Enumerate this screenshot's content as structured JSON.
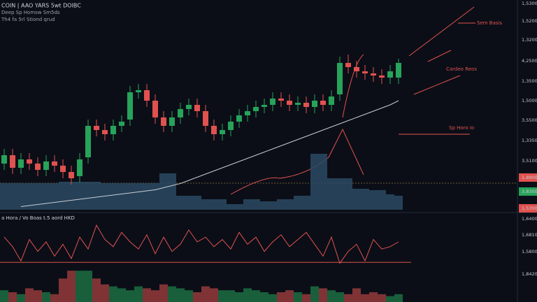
{
  "chart_data": {
    "type": "candlestick",
    "title": "COIN | AAO YARS 5wt DOIBC",
    "subtitle": "Deep Sp Homsw Sm5ds",
    "subtitle2": "Th4 fa 5rl Stiond qrud",
    "annotations": [
      "Sem Basis",
      "Cardeo Reos",
      "Sp Horo Io"
    ],
    "panel2_title": "a Hora / Vo Boas t.5 aord HKD",
    "axis_labels": [
      "1,5300",
      "1,5200",
      "1,3200",
      "4,2500",
      "1,3500",
      "1,5000",
      "3,5500",
      "1,3350",
      "3,5100",
      "1,8900",
      "3,8300",
      "1,5300",
      "1,6400",
      "1,6810",
      "1,5800",
      "1,8420"
    ],
    "up_color": "#27a35a",
    "down_color": "#e0524f",
    "ma_color": "#c9ccd4",
    "volume_color": "#2c4a63",
    "ylim": [
      0,
      100
    ],
    "open": [
      22,
      26,
      20,
      24,
      22,
      19,
      23,
      21,
      18,
      16,
      25,
      40,
      38,
      36,
      40,
      43,
      56,
      57,
      52,
      44,
      40,
      44,
      48,
      50,
      47,
      40,
      36,
      38,
      42,
      45,
      47,
      49,
      50,
      53,
      52,
      50,
      51,
      49,
      52,
      50,
      55,
      70,
      68,
      66,
      65,
      64,
      63,
      63
    ],
    "high": [
      29,
      29,
      27,
      27,
      25,
      26,
      26,
      24,
      21,
      27,
      43,
      43,
      41,
      43,
      45,
      59,
      60,
      60,
      55,
      47,
      47,
      51,
      53,
      53,
      50,
      43,
      41,
      45,
      48,
      50,
      52,
      53,
      56,
      56,
      55,
      54,
      54,
      55,
      55,
      57,
      73,
      74,
      71,
      69,
      68,
      67,
      69,
      72
    ],
    "low": [
      19,
      17,
      17,
      19,
      16,
      16,
      18,
      15,
      12,
      13,
      22,
      35,
      33,
      33,
      37,
      40,
      53,
      49,
      41,
      37,
      37,
      41,
      45,
      44,
      37,
      33,
      33,
      35,
      39,
      42,
      44,
      46,
      47,
      49,
      47,
      47,
      46,
      46,
      47,
      47,
      52,
      65,
      63,
      62,
      61,
      60,
      60,
      60
    ],
    "close": [
      26,
      20,
      24,
      22,
      19,
      23,
      21,
      18,
      15,
      24,
      40,
      38,
      36,
      40,
      42,
      56,
      57,
      52,
      44,
      40,
      44,
      48,
      50,
      47,
      40,
      36,
      38,
      42,
      45,
      47,
      49,
      50,
      53,
      52,
      50,
      51,
      49,
      52,
      50,
      54,
      70,
      68,
      66,
      65,
      64,
      63,
      66,
      70
    ],
    "ma": [
      null,
      null,
      1.5,
      2,
      2.5,
      3,
      3.5,
      4,
      4.5,
      5,
      5.5,
      6,
      6.5,
      7,
      7.5,
      8,
      8.5,
      9,
      9.5,
      10.5,
      11.5,
      12.5,
      14,
      15.5,
      17,
      18.5,
      20,
      21.5,
      23,
      24.5,
      26,
      27.5,
      29,
      30.5,
      32,
      33.5,
      35,
      36.5,
      38,
      39.5,
      41,
      42.5,
      44,
      45.5,
      47,
      48.5,
      50,
      52
    ],
    "volume": [
      38,
      38,
      38,
      38,
      38,
      38,
      38,
      40,
      40,
      40,
      40,
      40,
      38,
      38,
      38,
      38,
      38,
      38,
      38,
      52,
      52,
      20,
      20,
      20,
      15,
      15,
      15,
      8,
      8,
      15,
      15,
      12,
      12,
      15,
      15,
      20,
      20,
      80,
      80,
      45,
      45,
      45,
      30,
      30,
      28,
      28,
      22,
      20
    ],
    "vlim": [
      0,
      100
    ],
    "oscillator": [
      60,
      40,
      10,
      55,
      30,
      50,
      20,
      45,
      15,
      60,
      35,
      85,
      55,
      40,
      70,
      50,
      35,
      65,
      25,
      60,
      30,
      45,
      75,
      50,
      60,
      40,
      55,
      35,
      70,
      45,
      60,
      30,
      50,
      65,
      40,
      55,
      70,
      45,
      20,
      60,
      5,
      30,
      45,
      10,
      55,
      35,
      40,
      50
    ],
    "oscillator_baseline": 7,
    "olim": [
      0,
      100
    ],
    "histogram": [
      30,
      25,
      20,
      35,
      30,
      25,
      20,
      60,
      80,
      80,
      80,
      60,
      45,
      40,
      35,
      30,
      40,
      35,
      30,
      45,
      40,
      35,
      30,
      25,
      40,
      35,
      30,
      30,
      25,
      35,
      30,
      25,
      20,
      25,
      30,
      25,
      20,
      40,
      35,
      30,
      25,
      20,
      35,
      20,
      25,
      20,
      15,
      20
    ],
    "hlim": [
      0,
      100
    ]
  }
}
